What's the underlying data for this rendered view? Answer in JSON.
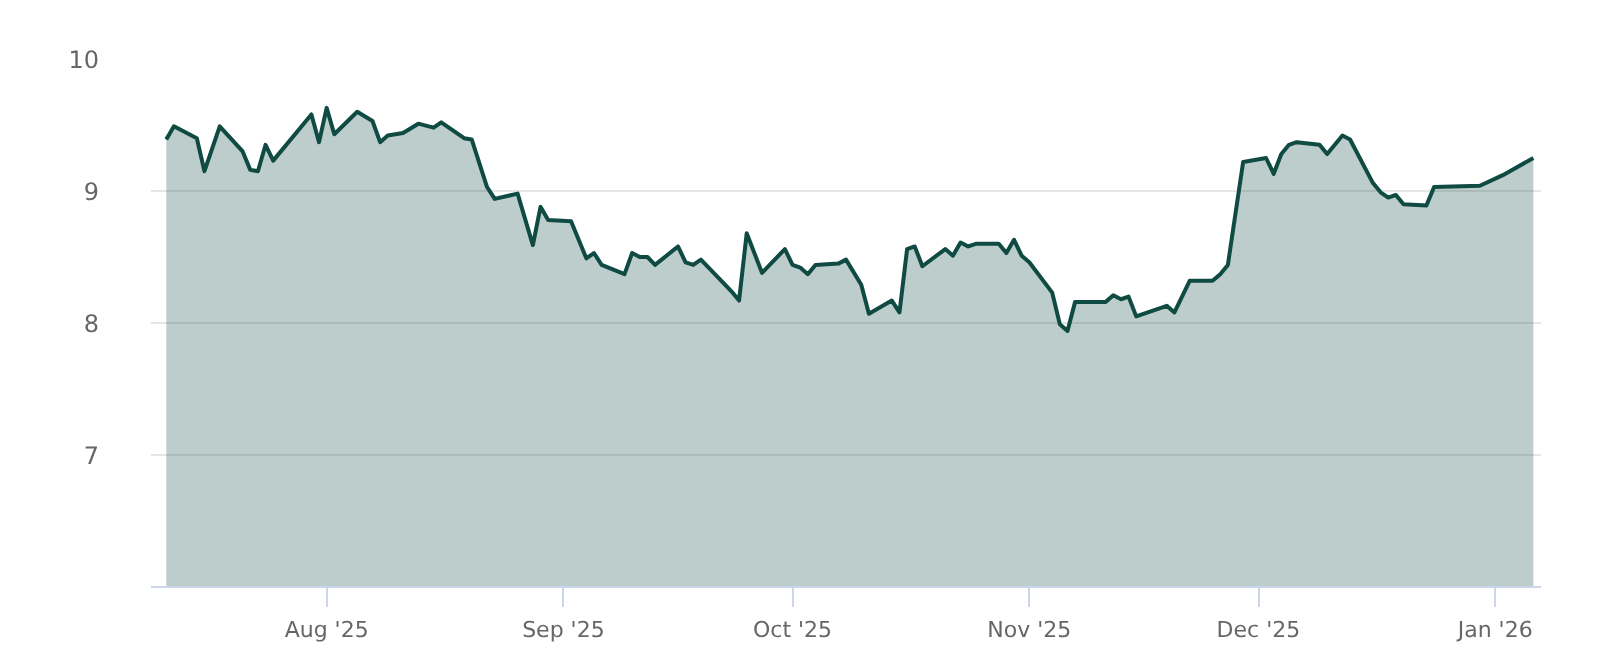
{
  "chart_data": {
    "type": "area",
    "x": [
      "2025-07-11",
      "2025-07-12",
      "2025-07-15",
      "2025-07-16",
      "2025-07-18",
      "2025-07-21",
      "2025-07-22",
      "2025-07-23",
      "2025-07-24",
      "2025-07-25",
      "2025-07-30",
      "2025-07-31",
      "2025-08-01",
      "2025-08-02",
      "2025-08-05",
      "2025-08-07",
      "2025-08-08",
      "2025-08-09",
      "2025-08-11",
      "2025-08-13",
      "2025-08-15",
      "2025-08-16",
      "2025-08-19",
      "2025-08-20",
      "2025-08-22",
      "2025-08-23",
      "2025-08-26",
      "2025-08-28",
      "2025-08-29",
      "2025-08-30",
      "2025-09-02",
      "2025-09-04",
      "2025-09-05",
      "2025-09-06",
      "2025-09-09",
      "2025-09-10",
      "2025-09-11",
      "2025-09-12",
      "2025-09-13",
      "2025-09-16",
      "2025-09-17",
      "2025-09-18",
      "2025-09-19",
      "2025-09-22",
      "2025-09-23",
      "2025-09-24",
      "2025-09-25",
      "2025-09-27",
      "2025-09-30",
      "2025-10-01",
      "2025-10-02",
      "2025-10-03",
      "2025-10-04",
      "2025-10-07",
      "2025-10-08",
      "2025-10-10",
      "2025-10-11",
      "2025-10-14",
      "2025-10-15",
      "2025-10-16",
      "2025-10-17",
      "2025-10-18",
      "2025-10-21",
      "2025-10-22",
      "2025-10-23",
      "2025-10-24",
      "2025-10-25",
      "2025-10-28",
      "2025-10-29",
      "2025-10-30",
      "2025-10-31",
      "2025-11-01",
      "2025-11-04",
      "2025-11-05",
      "2025-11-06",
      "2025-11-07",
      "2025-11-11",
      "2025-11-12",
      "2025-11-13",
      "2025-11-14",
      "2025-11-15",
      "2025-11-19",
      "2025-11-20",
      "2025-11-22",
      "2025-11-25",
      "2025-11-26",
      "2025-11-27",
      "2025-11-29",
      "2025-12-02",
      "2025-12-03",
      "2025-12-04",
      "2025-12-05",
      "2025-12-06",
      "2025-12-09",
      "2025-12-10",
      "2025-12-12",
      "2025-12-13",
      "2025-12-16",
      "2025-12-17",
      "2025-12-18",
      "2025-12-19",
      "2025-12-20",
      "2025-12-23",
      "2025-12-24",
      "2025-12-30",
      "2026-01-02",
      "2026-01-06"
    ],
    "series": [
      {
        "color": "#0f4a43",
        "values": [
          9.39,
          9.49,
          9.4,
          9.15,
          9.49,
          9.3,
          9.16,
          9.15,
          9.35,
          9.23,
          9.58,
          9.37,
          9.63,
          9.43,
          9.6,
          9.53,
          9.37,
          9.42,
          9.44,
          9.51,
          9.48,
          9.52,
          9.4,
          9.39,
          9.03,
          8.94,
          8.98,
          8.59,
          8.88,
          8.78,
          8.77,
          8.49,
          8.53,
          8.44,
          8.37,
          8.53,
          8.5,
          8.5,
          8.44,
          8.58,
          8.46,
          8.44,
          8.48,
          8.3,
          8.24,
          8.17,
          8.68,
          8.38,
          8.56,
          8.44,
          8.42,
          8.37,
          8.44,
          8.45,
          8.48,
          8.29,
          8.07,
          8.17,
          8.08,
          8.56,
          8.58,
          8.43,
          8.56,
          8.51,
          8.61,
          8.58,
          8.6,
          8.6,
          8.53,
          8.63,
          8.51,
          8.46,
          8.23,
          7.99,
          7.94,
          8.16,
          8.16,
          8.21,
          8.18,
          8.2,
          8.05,
          8.13,
          8.08,
          8.32,
          8.32,
          8.37,
          8.44,
          9.22,
          9.25,
          9.13,
          9.28,
          9.35,
          9.37,
          9.35,
          9.28,
          9.42,
          9.39,
          9.06,
          8.99,
          8.95,
          8.97,
          8.9,
          8.89,
          9.03,
          9.04,
          9.12,
          9.25
        ]
      }
    ],
    "xlim": [
      "2025-07-09",
      "2026-01-07"
    ],
    "xticks": [
      {
        "value": "2025-08-01",
        "label": "Aug '25"
      },
      {
        "value": "2025-09-01",
        "label": "Sep '25"
      },
      {
        "value": "2025-10-01",
        "label": "Oct '25"
      },
      {
        "value": "2025-11-01",
        "label": "Nov '25"
      },
      {
        "value": "2025-12-01",
        "label": "Dec '25"
      },
      {
        "value": "2026-01-01",
        "label": "Jan '26"
      }
    ],
    "ylim": [
      6,
      10
    ],
    "yticks": [
      7,
      8,
      9,
      10
    ],
    "grid": "y"
  }
}
